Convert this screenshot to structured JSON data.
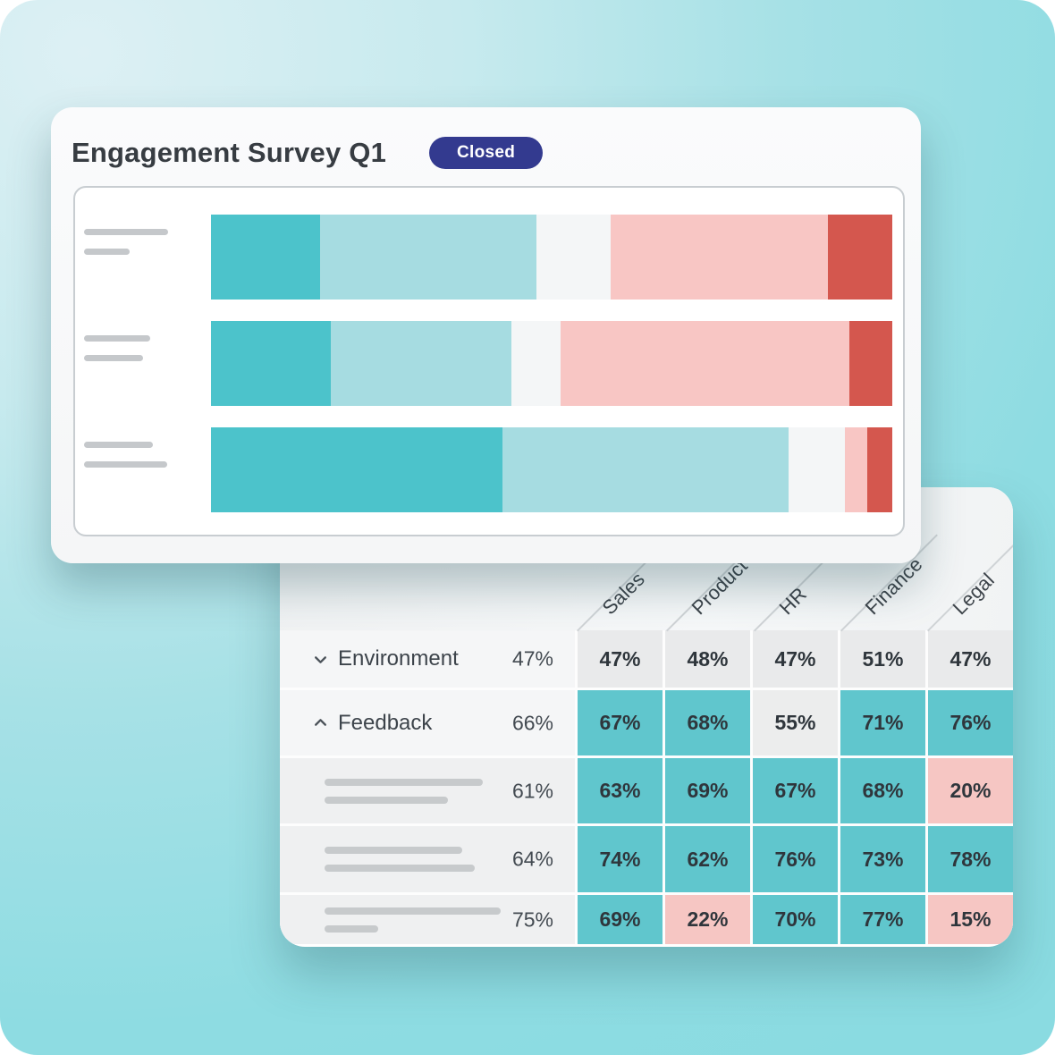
{
  "background": {
    "gradient_from": "#ddf0f4",
    "gradient_to": "#8edce2"
  },
  "survey_card": {
    "title": "Engagement Survey Q1",
    "badge": {
      "label": "Closed",
      "bg_color": "#333a8f",
      "text_color": "#ffffff"
    },
    "chart": {
      "type": "stacked-bar",
      "palette": {
        "strong_positive": "#4cc3cb",
        "positive": "#a6dce1",
        "neutral": "#f4f6f7",
        "negative": "#f8c6c4",
        "strong_negative": "#d4574e"
      },
      "rows": [
        {
          "name": "question-row-1",
          "segments": [
            {
              "color": "#4cc3cb",
              "pct": 16.0
            },
            {
              "color": "#a6dce1",
              "pct": 31.8
            },
            {
              "color": "#f4f6f7",
              "pct": 10.9
            },
            {
              "color": "#f8c6c4",
              "pct": 31.8
            },
            {
              "color": "#d4574e",
              "pct": 9.5
            }
          ]
        },
        {
          "name": "question-row-2",
          "segments": [
            {
              "color": "#4cc3cb",
              "pct": 17.6
            },
            {
              "color": "#a6dce1",
              "pct": 26.5
            },
            {
              "color": "#f4f6f7",
              "pct": 7.2
            },
            {
              "color": "#f8c6c4",
              "pct": 42.4
            },
            {
              "color": "#d4574e",
              "pct": 6.3
            }
          ]
        },
        {
          "name": "question-row-3",
          "segments": [
            {
              "color": "#4cc3cb",
              "pct": 42.8
            },
            {
              "color": "#a6dce1",
              "pct": 42.0
            },
            {
              "color": "#f4f6f7",
              "pct": 8.2
            },
            {
              "color": "#f8c6c4",
              "pct": 3.3
            },
            {
              "color": "#d4574e",
              "pct": 3.7
            }
          ]
        }
      ]
    }
  },
  "heatmap_card": {
    "columns": [
      "Sales",
      "Product",
      "HR",
      "Finance",
      "Legal"
    ],
    "cell_palette": {
      "high": "#60c6cd",
      "low": "#f6c6c3",
      "neutral": "#e9eaeb"
    },
    "rows": [
      {
        "label": "Environment",
        "expanded": false,
        "overall": "47%",
        "values": [
          "47%",
          "48%",
          "47%",
          "51%",
          "47%"
        ],
        "cell_colors": [
          "#e9eaeb",
          "#e9eaeb",
          "#e9eaeb",
          "#e9eaeb",
          "#e9eaeb"
        ]
      },
      {
        "label": "Feedback",
        "expanded": true,
        "overall": "66%",
        "values": [
          "67%",
          "68%",
          "55%",
          "71%",
          "76%"
        ],
        "cell_colors": [
          "#60c6cd",
          "#60c6cd",
          "#eceded",
          "#60c6cd",
          "#60c6cd"
        ]
      },
      {
        "label": "",
        "overall": "61%",
        "values": [
          "63%",
          "69%",
          "67%",
          "68%",
          "20%"
        ],
        "cell_colors": [
          "#60c6cd",
          "#60c6cd",
          "#60c6cd",
          "#60c6cd",
          "#f6c6c3"
        ]
      },
      {
        "label": "",
        "overall": "64%",
        "values": [
          "74%",
          "62%",
          "76%",
          "73%",
          "78%"
        ],
        "cell_colors": [
          "#60c6cd",
          "#60c6cd",
          "#60c6cd",
          "#60c6cd",
          "#60c6cd"
        ]
      },
      {
        "label": "",
        "overall": "75%",
        "values": [
          "69%",
          "22%",
          "70%",
          "77%",
          "15%"
        ],
        "cell_colors": [
          "#60c6cd",
          "#f6c6c3",
          "#60c6cd",
          "#60c6cd",
          "#f6c6c3"
        ]
      }
    ]
  }
}
